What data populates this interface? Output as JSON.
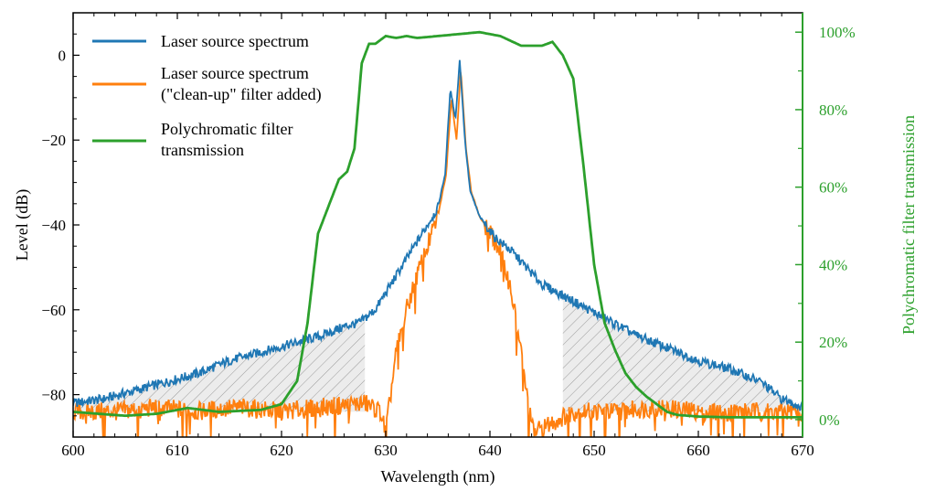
{
  "chart_data": {
    "type": "line",
    "xlabel": "Wavelength (nm)",
    "ylabel": "Level (dB)",
    "ylabel_right": "Polychromatic filter transmission",
    "xlim": [
      600,
      670
    ],
    "ylim": [
      -90,
      10
    ],
    "ylim_right": [
      -0.045,
      1.05
    ],
    "x_ticks": [
      "600",
      "610",
      "620",
      "630",
      "640",
      "650",
      "660",
      "670"
    ],
    "y_ticks": [
      "0",
      "−20",
      "−40",
      "−60",
      "−80"
    ],
    "y_right_ticks": [
      "0%",
      "20%",
      "40%",
      "60%",
      "80%",
      "100%"
    ],
    "grid": false,
    "legend_position": "top-left",
    "colors": {
      "laser": "#1f77b4",
      "cleanup": "#ff7f0e",
      "filter": "#2ca02c",
      "hatch": "#d9d9d9"
    },
    "series": [
      {
        "name": "Laser source spectrum",
        "axis": "left",
        "x": [
          600,
          603,
          606,
          609,
          612,
          615,
          618,
          621,
          624,
          626,
          627.5,
          629,
          630.5,
          632,
          633.5,
          635,
          635.7,
          636.2,
          636.7,
          637.1,
          637.6,
          638.1,
          639,
          640.5,
          642,
          643.5,
          645,
          648,
          651,
          654,
          657,
          660,
          663,
          666,
          668,
          670
        ],
        "y": [
          -82,
          -81,
          -79,
          -77,
          -75,
          -72,
          -70,
          -68,
          -66,
          -64,
          -63,
          -60,
          -54,
          -48,
          -42,
          -36,
          -28,
          -8,
          -15,
          -1,
          -20,
          -32,
          -38,
          -43,
          -46,
          -50,
          -54,
          -58,
          -62,
          -66,
          -69,
          -72,
          -74,
          -77,
          -81,
          -83
        ]
      },
      {
        "name": "Laser source spectrum\n(\"clean-up\" filter added)",
        "axis": "left",
        "x": [
          600,
          604,
          608,
          612,
          616,
          620,
          624,
          628,
          629.5,
          630,
          631,
          632,
          633,
          634,
          635,
          635.8,
          636.3,
          636.8,
          637.2,
          637.7,
          638.2,
          639,
          640,
          641,
          642,
          643,
          643.7,
          644.2,
          648,
          652,
          656,
          660,
          664,
          668,
          670
        ],
        "y": [
          -84,
          -84,
          -83,
          -84,
          -83,
          -84,
          -83,
          -82,
          -84,
          -89,
          -70,
          -60,
          -52,
          -45,
          -38,
          -28,
          -10,
          -20,
          -3,
          -22,
          -32,
          -38,
          -42,
          -46,
          -55,
          -70,
          -83,
          -89,
          -84,
          -84,
          -83,
          -84,
          -84,
          -84,
          -84
        ]
      },
      {
        "name": "Polychromatic filter\ntransmission",
        "axis": "right",
        "x": [
          600,
          605,
          608,
          611,
          614,
          618,
          620,
          621.5,
          622.5,
          623.5,
          624.5,
          625.5,
          626.3,
          627,
          627.7,
          628.4,
          629,
          630,
          631,
          632,
          633,
          635,
          637,
          639,
          641,
          643,
          645,
          646,
          647,
          648,
          649,
          650,
          651,
          652,
          653,
          654,
          655,
          656,
          657,
          658,
          660,
          663,
          667,
          670
        ],
        "y": [
          0.02,
          0.01,
          0.015,
          0.03,
          0.02,
          0.025,
          0.04,
          0.1,
          0.25,
          0.48,
          0.55,
          0.62,
          0.64,
          0.7,
          0.92,
          0.97,
          0.97,
          0.99,
          0.985,
          0.99,
          0.985,
          0.99,
          0.995,
          1.0,
          0.99,
          0.965,
          0.965,
          0.975,
          0.94,
          0.88,
          0.65,
          0.4,
          0.25,
          0.18,
          0.12,
          0.085,
          0.06,
          0.04,
          0.02,
          0.012,
          0.008,
          0.006,
          0.006,
          0.006
        ]
      }
    ],
    "shaded_regions": [
      {
        "from": 600,
        "to": 628
      },
      {
        "from": 647,
        "to": 670
      }
    ]
  }
}
